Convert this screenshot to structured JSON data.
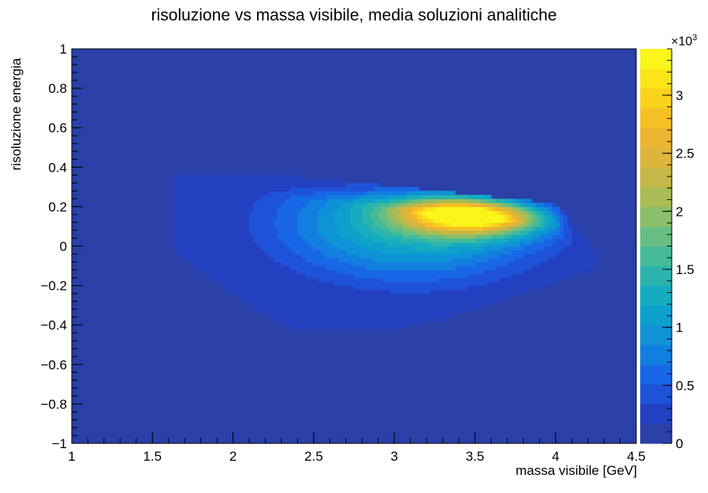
{
  "chart_data": {
    "type": "heatmap",
    "title": "risoluzione vs massa visibile,  media soluzioni analitiche",
    "xlabel": "massa visibile [GeV]",
    "ylabel": "risoluzione energia",
    "xlim": [
      1,
      4.5
    ],
    "ylim": [
      -1,
      1
    ],
    "x_ticks": [
      "1",
      "1.5",
      "2",
      "2.5",
      "3",
      "3.5",
      "4",
      "4.5"
    ],
    "y_ticks": [
      "−1",
      "−0.8",
      "−0.6",
      "−0.4",
      "−0.2",
      "0",
      "0.2",
      "0.4",
      "0.6",
      "0.8",
      "1"
    ],
    "colorbar": {
      "range": [
        0,
        3400
      ],
      "multiplier_text": "×10",
      "multiplier_exp": "3",
      "ticks": [
        "0",
        "0.5",
        "1",
        "1.5",
        "2",
        "2.5",
        "3"
      ],
      "tick_values": [
        0,
        500,
        1000,
        1500,
        2000,
        2500,
        3000
      ],
      "palette": [
        "#2a3fa8",
        "#2340c0",
        "#1e52d8",
        "#1867e6",
        "#127fe0",
        "#0f92d6",
        "#0ea0cc",
        "#16acc0",
        "#2ab4ad",
        "#45ba98",
        "#68be82",
        "#8bbe6a",
        "#a9bc55",
        "#c4b848",
        "#dbb53c",
        "#ecb430",
        "#f6c025",
        "#f9d21d",
        "#fbe41a",
        "#fcf51b"
      ]
    },
    "distribution": {
      "description_free": true,
      "peak_x": 3.5,
      "peak_y": 0.18,
      "peak_value": 3400,
      "x_range": [
        1.63,
        4.25
      ],
      "y_range": [
        -0.43,
        0.37
      ]
    },
    "background_color": "#2a3fa8",
    "grid": false
  }
}
